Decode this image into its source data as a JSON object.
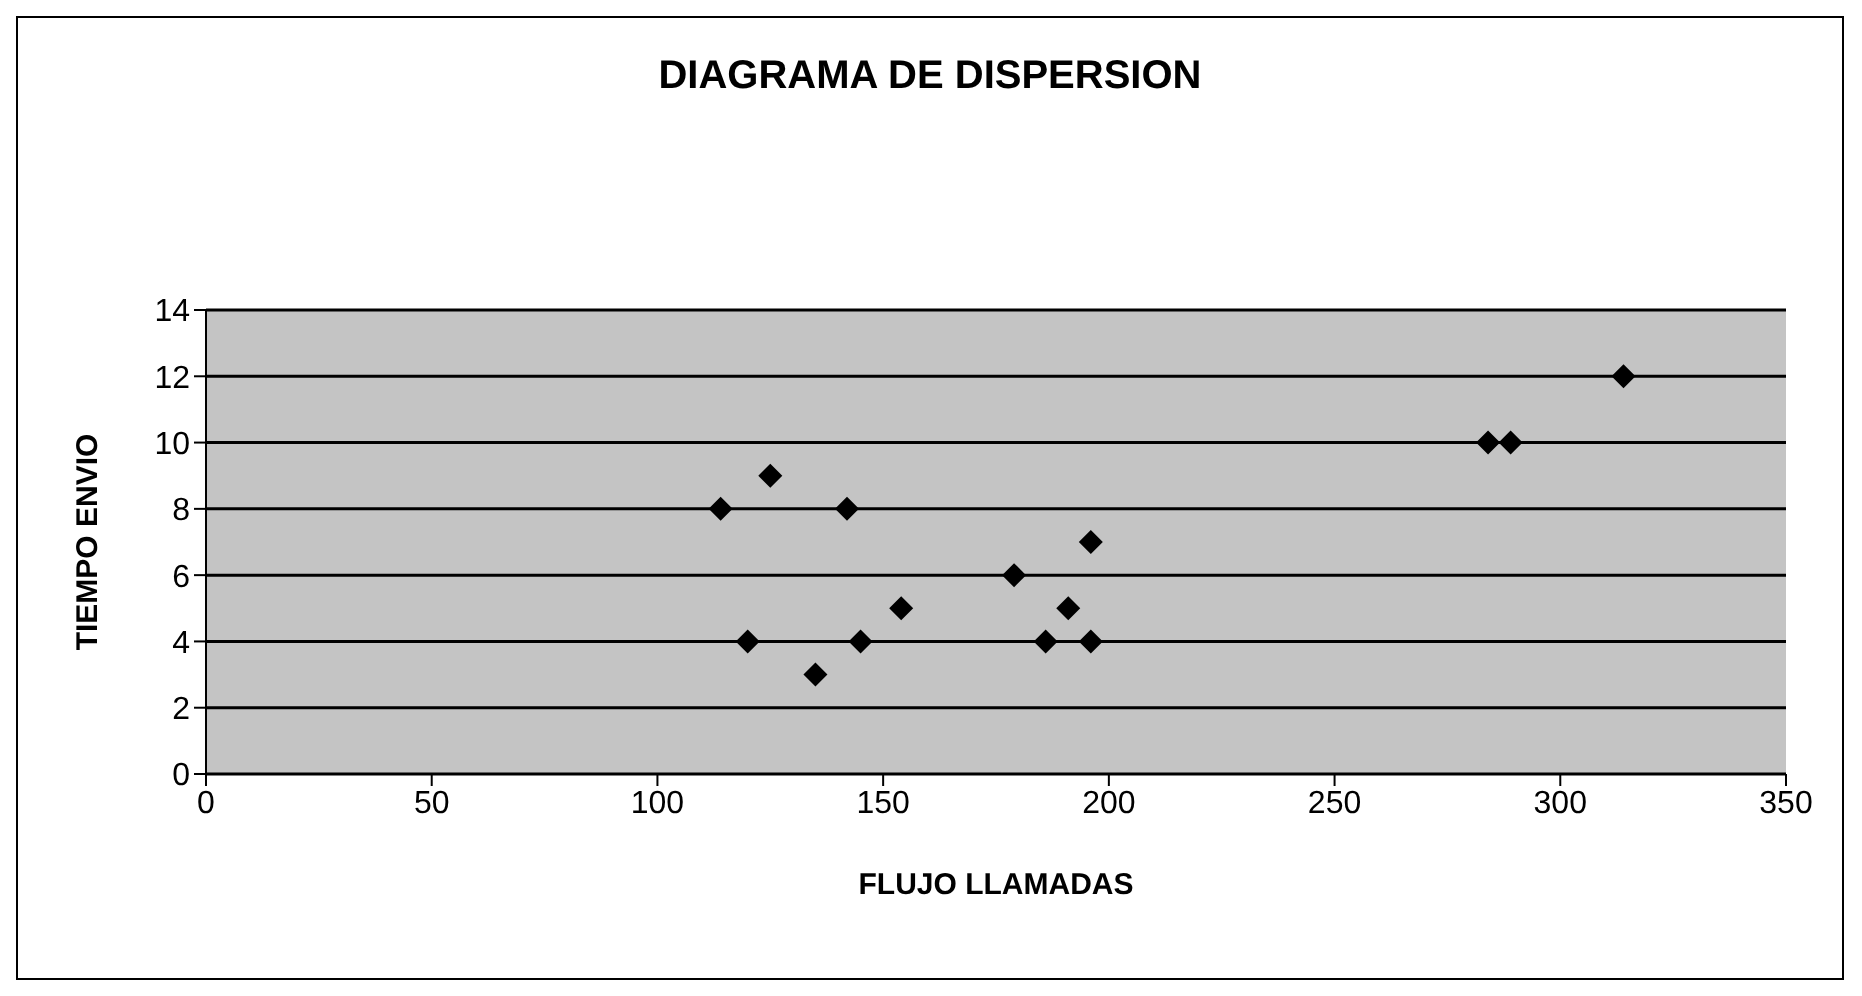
{
  "chart_data": {
    "type": "scatter",
    "title": "DIAGRAMA DE DISPERSION",
    "xlabel": "FLUJO LLAMADAS",
    "ylabel": "TIEMPO ENVIO",
    "x": [
      114,
      125,
      142,
      120,
      145,
      135,
      154,
      314,
      284,
      289,
      196,
      179,
      191,
      186,
      196
    ],
    "values": [
      8,
      9,
      8,
      4,
      4,
      3,
      5,
      12,
      10,
      10,
      7,
      6,
      5,
      4,
      4
    ],
    "color": "#000000",
    "marker": "diamond",
    "grid": "y",
    "xlim": [
      0,
      350
    ],
    "xticks": [
      0,
      50,
      100,
      150,
      200,
      250,
      300,
      350
    ],
    "ylim": [
      0,
      14
    ],
    "yticks": [
      0,
      2,
      4,
      6,
      8,
      10,
      12,
      14
    ]
  }
}
